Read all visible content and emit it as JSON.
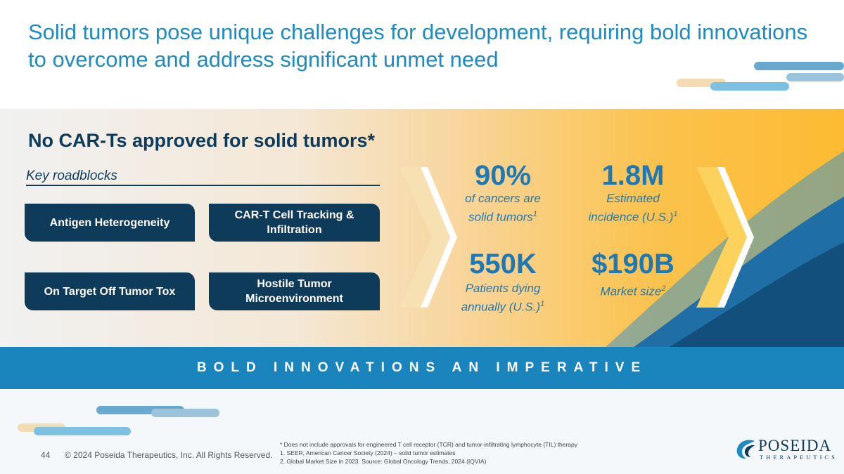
{
  "title": "Solid tumors pose unique challenges for development, requiring bold innovations to overcome and address significant unmet need",
  "headline": "No CAR-Ts approved for solid tumors*",
  "roadblocks": {
    "label": "Key roadblocks",
    "items": [
      "Antigen Heterogeneity",
      "CAR-T Cell Tracking & Infiltration",
      "On Target Off Tumor Tox",
      "Hostile Tumor Microenvironment"
    ]
  },
  "stats": [
    {
      "value": "90%",
      "line1": "of cancers are",
      "line2": "solid tumors",
      "ref": "1"
    },
    {
      "value": "1.8M",
      "line1": "Estimated",
      "line2": "incidence (U.S.)",
      "ref": "1"
    },
    {
      "value": "550K",
      "line1": "Patients dying",
      "line2": "annually (U.S.)",
      "ref": "1"
    },
    {
      "value": "$190B",
      "line1": "Market size",
      "line2": "",
      "ref": "2"
    }
  ],
  "banner": "BOLD INNOVATIONS AN IMPERATIVE",
  "footer": {
    "page_number": "44",
    "copyright": "© 2024 Poseida Therapeutics, Inc. All Rights Reserved.",
    "notes": [
      "* Does not include approvals for engineered T cell receptor (TCR) and tumor-infiltrating lymphocyte (TIL) therapy",
      "1. SEER, American Cancer Society (2024) – solid tumor estimates",
      "2. Global Market Size in 2023. Source: Global Oncology Trends, 2024 (IQVIA)"
    ]
  },
  "logo": {
    "name": "POSEIDA",
    "sub": "THERAPEUTICS"
  },
  "colors": {
    "navy": "#0f3b5b",
    "accent_blue": "#1f8ac0",
    "banner_blue": "#1a84bd",
    "gold": "#fcbb32"
  },
  "icons": [
    "chevron-right-icon",
    "poseida-wave-icon"
  ]
}
